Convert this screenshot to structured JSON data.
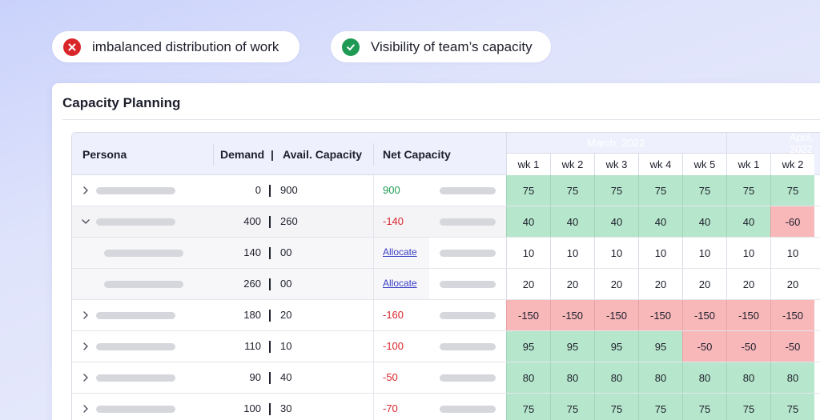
{
  "pills": {
    "bad": {
      "label": "imbalanced distribution of work",
      "icon": "close-icon"
    },
    "good": {
      "label": "Visibility of team’s capacity",
      "icon": "check-icon"
    }
  },
  "card": {
    "title": "Capacity Planning"
  },
  "table": {
    "headers": {
      "persona": "Persona",
      "demand": "Demand",
      "sep": "|",
      "avail": "Avail. Capacity",
      "net": "Net Capacity"
    },
    "months": [
      "March, 2022",
      "April, 2022"
    ],
    "weeks": [
      "wk 1",
      "wk 2",
      "wk 3",
      "wk 4",
      "wk 5",
      "wk 1",
      "wk 2"
    ],
    "rows": [
      {
        "type": "top",
        "chevron": "right",
        "demand": "0",
        "avail": "900",
        "net": "900",
        "net_kind": "pos",
        "cells": [
          {
            "v": "75",
            "c": "g"
          },
          {
            "v": "75",
            "c": "g"
          },
          {
            "v": "75",
            "c": "g"
          },
          {
            "v": "75",
            "c": "g"
          },
          {
            "v": "75",
            "c": "g"
          },
          {
            "v": "75",
            "c": "g"
          },
          {
            "v": "75",
            "c": "g"
          }
        ]
      },
      {
        "type": "expanded",
        "chevron": "down",
        "demand": "400",
        "avail": "260",
        "net": "-140",
        "net_kind": "neg",
        "cells": [
          {
            "v": "40",
            "c": "g"
          },
          {
            "v": "40",
            "c": "g"
          },
          {
            "v": "40",
            "c": "g"
          },
          {
            "v": "40",
            "c": "g"
          },
          {
            "v": "40",
            "c": "g"
          },
          {
            "v": "40",
            "c": "g"
          },
          {
            "v": "-60",
            "c": "r"
          }
        ]
      },
      {
        "type": "sub",
        "demand": "140",
        "avail": "00",
        "net": "Allocate",
        "net_kind": "link",
        "cells": [
          {
            "v": "10",
            "c": "w"
          },
          {
            "v": "10",
            "c": "w"
          },
          {
            "v": "10",
            "c": "w"
          },
          {
            "v": "10",
            "c": "w"
          },
          {
            "v": "10",
            "c": "w"
          },
          {
            "v": "10",
            "c": "w"
          },
          {
            "v": "10",
            "c": "w"
          }
        ]
      },
      {
        "type": "sub",
        "demand": "260",
        "avail": "00",
        "net": "Allocate",
        "net_kind": "link",
        "cells": [
          {
            "v": "20",
            "c": "w"
          },
          {
            "v": "20",
            "c": "w"
          },
          {
            "v": "20",
            "c": "w"
          },
          {
            "v": "20",
            "c": "w"
          },
          {
            "v": "20",
            "c": "w"
          },
          {
            "v": "20",
            "c": "w"
          },
          {
            "v": "20",
            "c": "w"
          }
        ]
      },
      {
        "type": "top",
        "chevron": "right",
        "demand": "180",
        "avail": "20",
        "net": "-160",
        "net_kind": "neg",
        "cells": [
          {
            "v": "-150",
            "c": "r"
          },
          {
            "v": "-150",
            "c": "r"
          },
          {
            "v": "-150",
            "c": "r"
          },
          {
            "v": "-150",
            "c": "r"
          },
          {
            "v": "-150",
            "c": "r"
          },
          {
            "v": "-150",
            "c": "r"
          },
          {
            "v": "-150",
            "c": "r"
          }
        ]
      },
      {
        "type": "top",
        "chevron": "right",
        "demand": "110",
        "avail": "10",
        "net": "-100",
        "net_kind": "neg",
        "cells": [
          {
            "v": "95",
            "c": "g"
          },
          {
            "v": "95",
            "c": "g"
          },
          {
            "v": "95",
            "c": "g"
          },
          {
            "v": "95",
            "c": "g"
          },
          {
            "v": "-50",
            "c": "r"
          },
          {
            "v": "-50",
            "c": "r"
          },
          {
            "v": "-50",
            "c": "r"
          }
        ]
      },
      {
        "type": "top",
        "chevron": "right",
        "demand": "90",
        "avail": "40",
        "net": "-50",
        "net_kind": "neg",
        "cells": [
          {
            "v": "80",
            "c": "g"
          },
          {
            "v": "80",
            "c": "g"
          },
          {
            "v": "80",
            "c": "g"
          },
          {
            "v": "80",
            "c": "g"
          },
          {
            "v": "80",
            "c": "g"
          },
          {
            "v": "80",
            "c": "g"
          },
          {
            "v": "80",
            "c": "g"
          }
        ]
      },
      {
        "type": "top",
        "chevron": "right",
        "demand": "100",
        "avail": "30",
        "net": "-70",
        "net_kind": "neg",
        "cells": [
          {
            "v": "75",
            "c": "g"
          },
          {
            "v": "75",
            "c": "g"
          },
          {
            "v": "75",
            "c": "g"
          },
          {
            "v": "75",
            "c": "g"
          },
          {
            "v": "75",
            "c": "g"
          },
          {
            "v": "75",
            "c": "g"
          },
          {
            "v": "75",
            "c": "g"
          }
        ]
      }
    ]
  },
  "colors": {
    "green_cell": "#b6e6cb",
    "red_cell": "#f8b8ba",
    "positive": "#1f9a54",
    "negative": "#d9262b",
    "link": "#3a3fc4",
    "header_bg": "#eef0fd"
  }
}
